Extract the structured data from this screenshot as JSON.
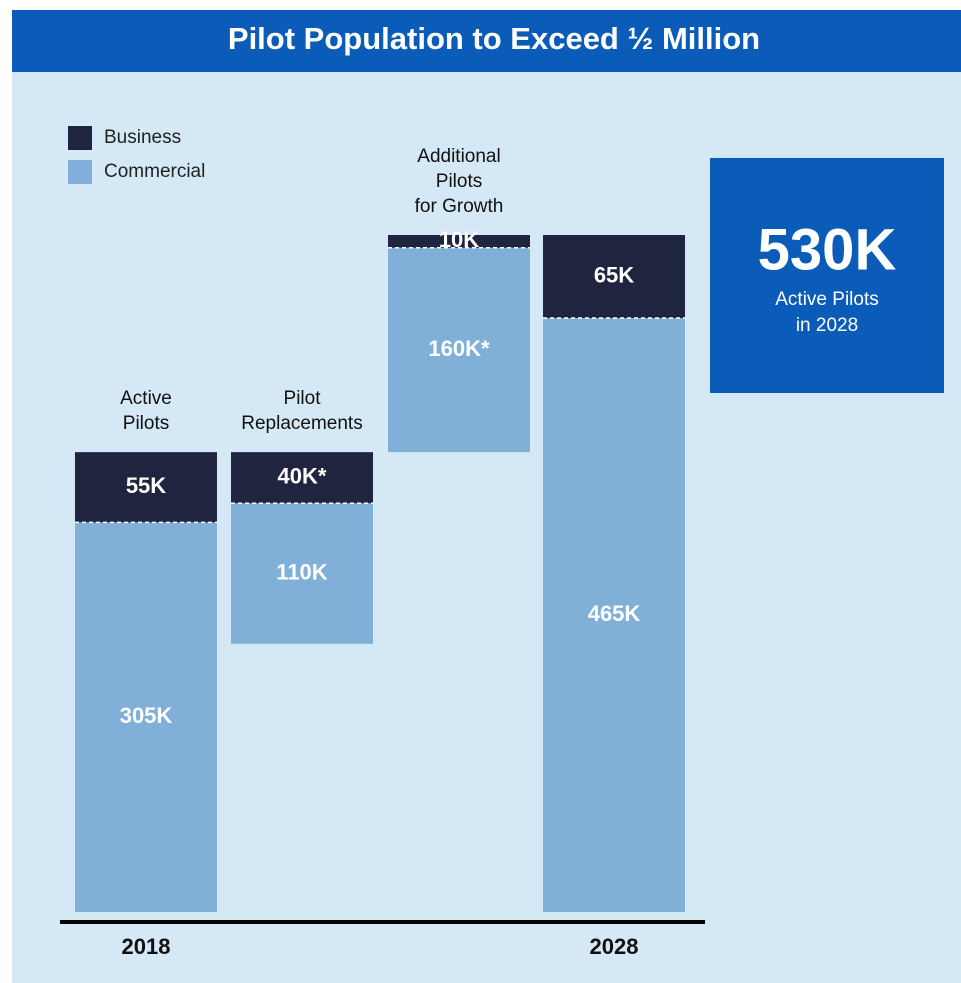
{
  "chart_data": {
    "type": "waterfall",
    "title": "Pilot Population to Exceed ½ Million",
    "categories": [
      "Active\nPilots",
      "Pilot\nReplacements",
      "Additional\nPilots\nfor Growth",
      null
    ],
    "x_labels": [
      "2018",
      null,
      null,
      "2028"
    ],
    "measure": [
      "absolute",
      "replacement",
      "relative",
      "total"
    ],
    "series": [
      {
        "name": "Commercial",
        "color": "#80b0d8",
        "values": [
          305,
          110,
          160,
          465
        ],
        "value_labels": [
          "305K",
          "110K",
          "160K*",
          "465K"
        ]
      },
      {
        "name": "Business",
        "color": "#20253f",
        "values": [
          55,
          40,
          10,
          65
        ],
        "value_labels": [
          "55K",
          "40K*",
          "10K",
          "65K"
        ]
      }
    ],
    "legend": [
      1,
      0
    ],
    "callout": {
      "value": 530,
      "value_label": "530K",
      "text": "Active Pilots\nin 2028",
      "color": "#0a5cb8"
    }
  }
}
